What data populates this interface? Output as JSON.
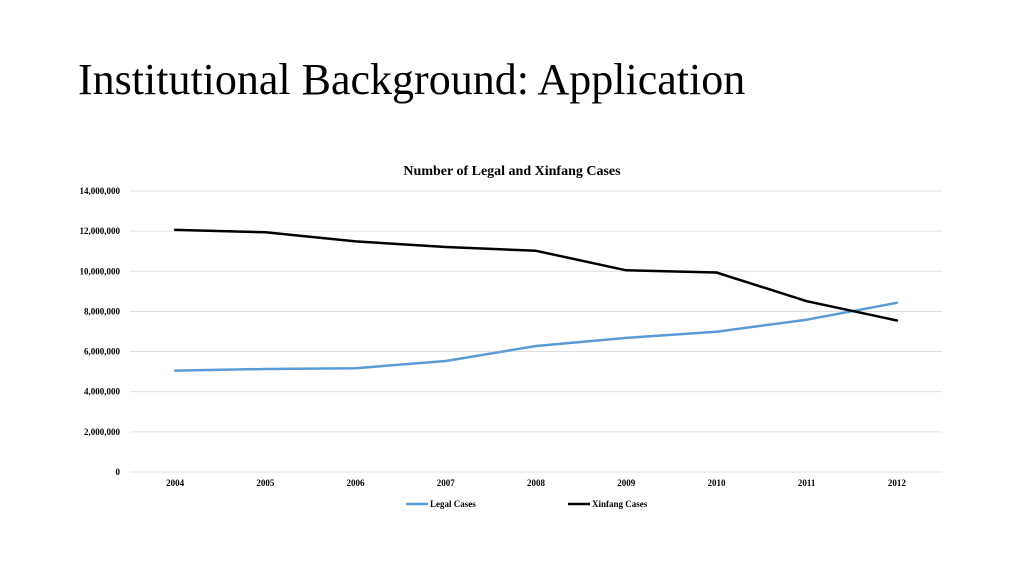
{
  "slide": {
    "title": "Institutional Background: Application"
  },
  "chart_data": {
    "type": "line",
    "title": "Number of Legal and Xinfang Cases",
    "xlabel": "",
    "ylabel": "",
    "categories": [
      "2004",
      "2005",
      "2006",
      "2007",
      "2008",
      "2009",
      "2010",
      "2011",
      "2012"
    ],
    "y_ticks": [
      "0",
      "2,000,000",
      "4,000,000",
      "6,000,000",
      "8,000,000",
      "10,000,000",
      "12,000,000",
      "14,000,000"
    ],
    "ylim": [
      0,
      14000000
    ],
    "grid": true,
    "legend_position": "bottom",
    "series": [
      {
        "name": "Legal Cases",
        "color": "#5b9bd5",
        "values": [
          5050000,
          5130000,
          5170000,
          5530000,
          6280000,
          6680000,
          6990000,
          7590000,
          8430000
        ]
      },
      {
        "name": "Xinfang Cases",
        "color": "#000000",
        "values": [
          12060000,
          11940000,
          11490000,
          11210000,
          11020000,
          10050000,
          9940000,
          8510000,
          7550000
        ]
      }
    ]
  }
}
